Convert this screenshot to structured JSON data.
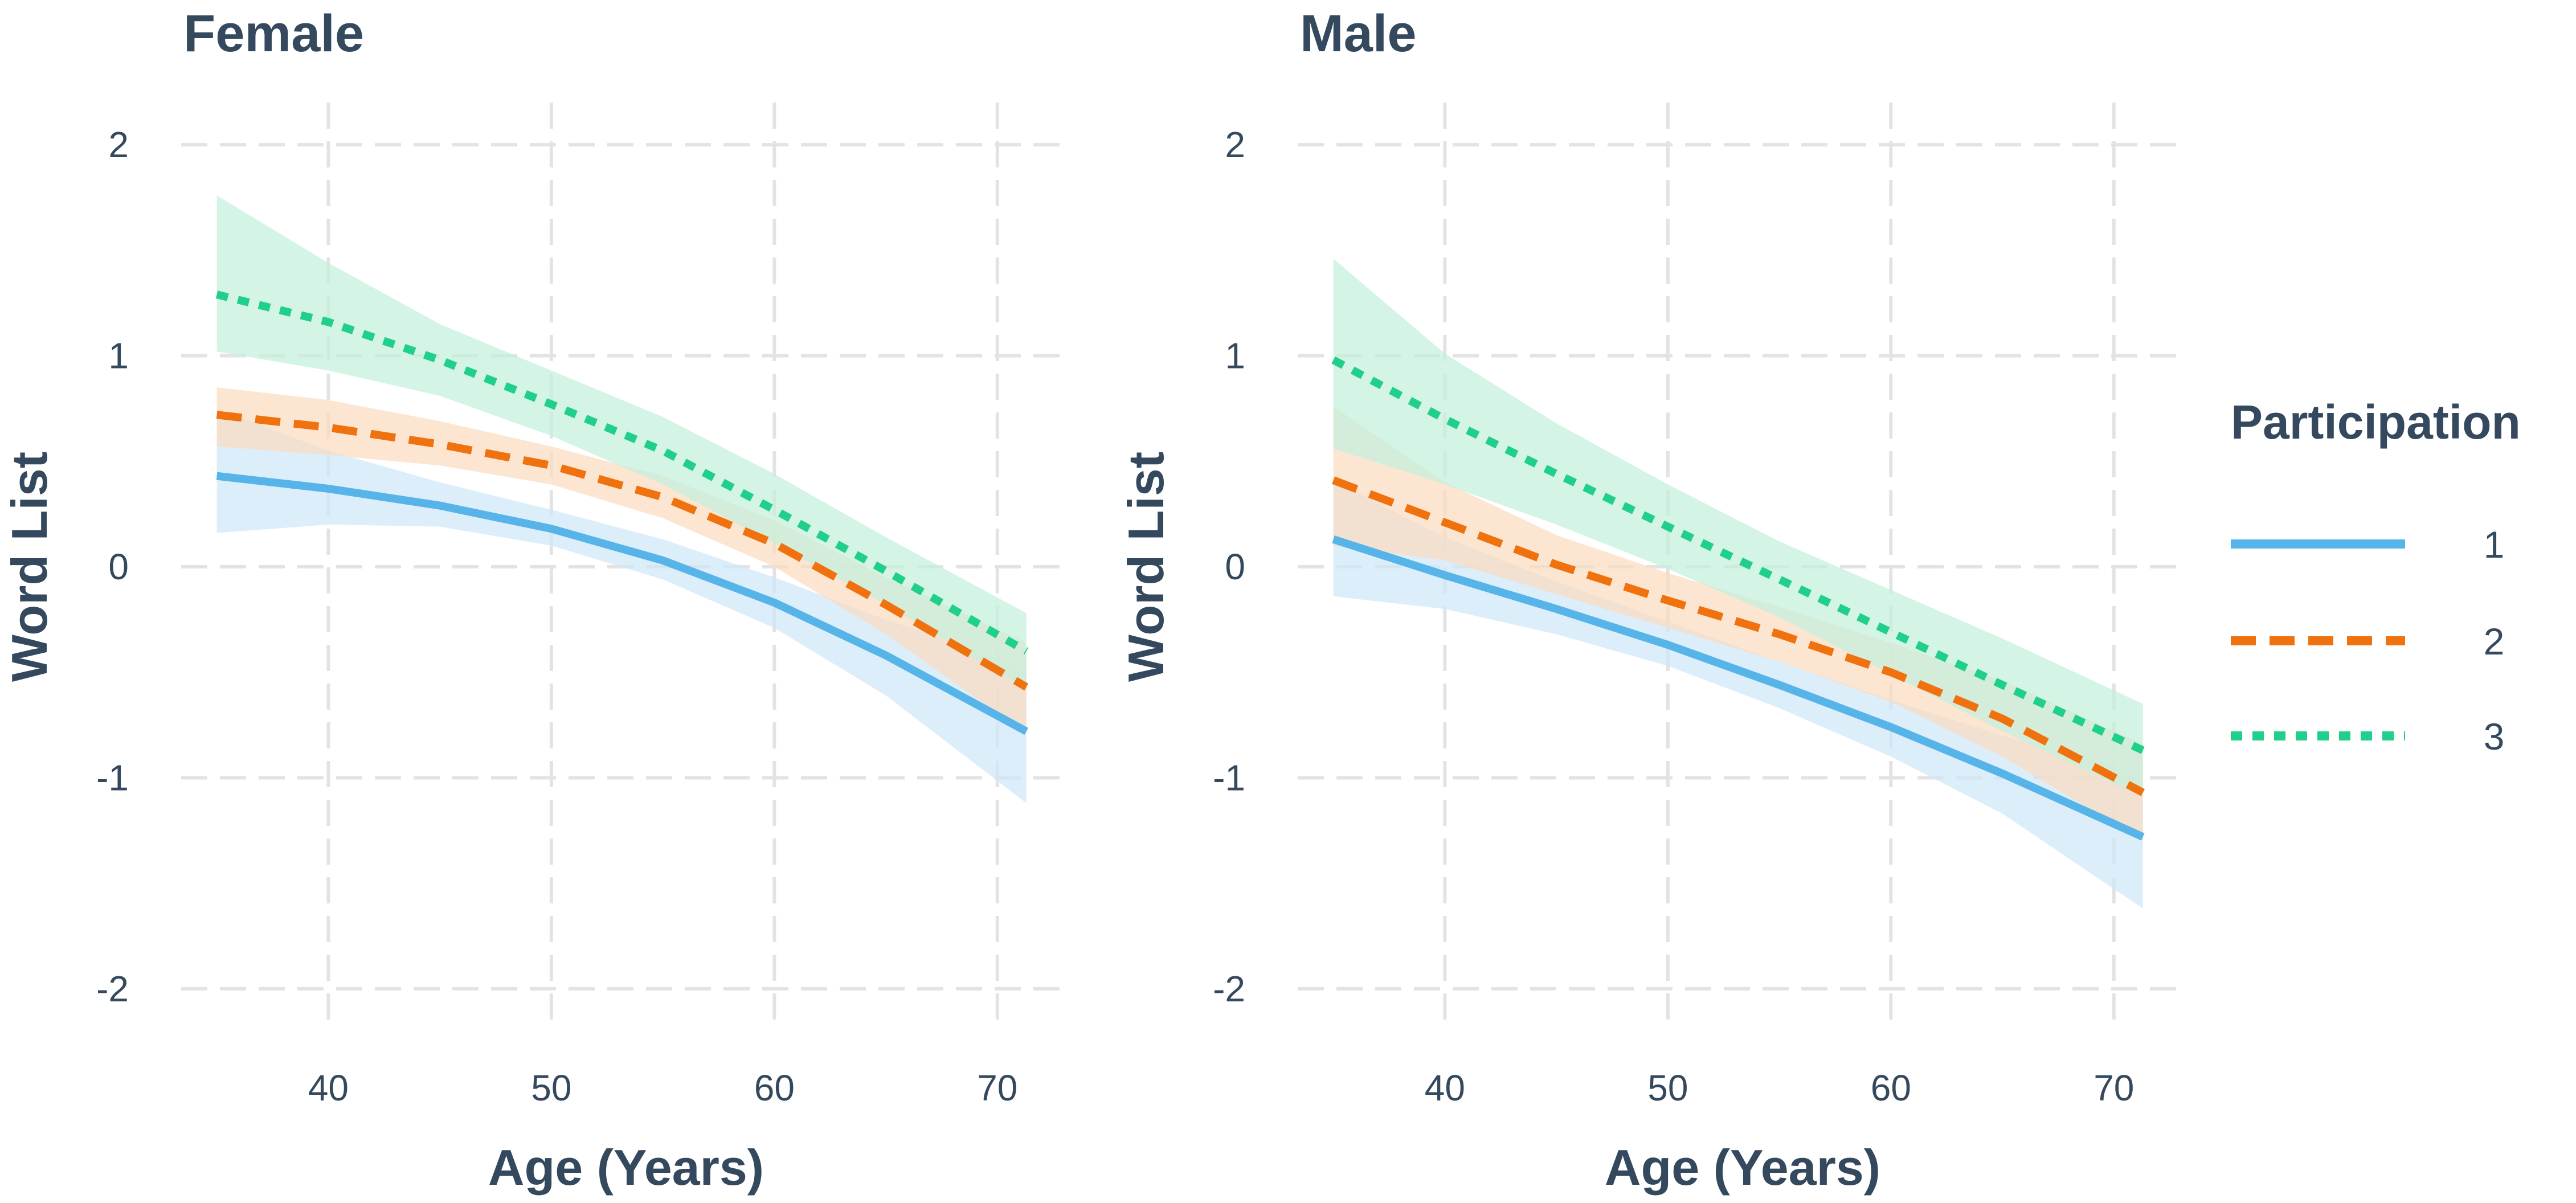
{
  "chart_data": [
    {
      "type": "line",
      "title": "Female",
      "xlabel": "Age (Years)",
      "ylabel": "Word List",
      "xlim": [
        33.4,
        73.3
      ],
      "ylim": [
        -2.2,
        2.2
      ],
      "xticks": [
        40,
        50,
        60,
        70
      ],
      "yticks": [
        -2,
        -1,
        0,
        1,
        2
      ],
      "grid": true,
      "x": [
        35,
        40,
        45,
        50,
        55,
        60,
        65,
        71.3
      ],
      "series": [
        {
          "name": "1",
          "values": [
            0.43,
            0.37,
            0.29,
            0.18,
            0.03,
            -0.17,
            -0.42,
            -0.78
          ],
          "lower": [
            0.16,
            0.2,
            0.19,
            0.1,
            -0.06,
            -0.29,
            -0.61,
            -1.12
          ],
          "upper": [
            0.75,
            0.55,
            0.4,
            0.27,
            0.13,
            -0.05,
            -0.25,
            -0.47
          ]
        },
        {
          "name": "2",
          "values": [
            0.72,
            0.66,
            0.58,
            0.48,
            0.33,
            0.11,
            -0.18,
            -0.57
          ],
          "lower": [
            0.57,
            0.53,
            0.48,
            0.39,
            0.23,
            0.0,
            -0.32,
            -0.79
          ],
          "upper": [
            0.85,
            0.79,
            0.69,
            0.57,
            0.43,
            0.22,
            -0.05,
            -0.36
          ]
        },
        {
          "name": "3",
          "values": [
            1.29,
            1.16,
            0.98,
            0.77,
            0.55,
            0.27,
            -0.02,
            -0.4
          ],
          "lower": [
            1.02,
            0.93,
            0.81,
            0.62,
            0.39,
            0.11,
            -0.18,
            -0.58
          ],
          "upper": [
            1.76,
            1.44,
            1.15,
            0.93,
            0.71,
            0.44,
            0.14,
            -0.22
          ]
        }
      ]
    },
    {
      "type": "line",
      "title": "Male",
      "xlabel": "Age (Years)",
      "ylabel": "Word List",
      "xlim": [
        33.4,
        73.3
      ],
      "ylim": [
        -2.2,
        2.2
      ],
      "xticks": [
        40,
        50,
        60,
        70
      ],
      "yticks": [
        -2,
        -1,
        0,
        1,
        2
      ],
      "grid": true,
      "x": [
        35,
        40,
        45,
        50,
        55,
        60,
        65,
        71.3
      ],
      "series": [
        {
          "name": "1",
          "values": [
            0.13,
            -0.04,
            -0.2,
            -0.37,
            -0.56,
            -0.76,
            -0.98,
            -1.28
          ],
          "lower": [
            -0.14,
            -0.2,
            -0.32,
            -0.47,
            -0.67,
            -0.9,
            -1.17,
            -1.62
          ],
          "upper": [
            0.41,
            0.14,
            -0.07,
            -0.26,
            -0.45,
            -0.63,
            -0.8,
            -0.98
          ]
        },
        {
          "name": "2",
          "values": [
            0.41,
            0.21,
            0.01,
            -0.16,
            -0.32,
            -0.5,
            -0.72,
            -1.07
          ],
          "lower": [
            0.1,
            0.03,
            -0.13,
            -0.29,
            -0.45,
            -0.64,
            -0.9,
            -1.3
          ],
          "upper": [
            0.76,
            0.4,
            0.15,
            -0.03,
            -0.19,
            -0.36,
            -0.54,
            -0.84
          ]
        },
        {
          "name": "3",
          "values": [
            0.98,
            0.7,
            0.44,
            0.19,
            -0.06,
            -0.31,
            -0.56,
            -0.87
          ],
          "lower": [
            0.56,
            0.39,
            0.2,
            -0.01,
            -0.24,
            -0.51,
            -0.78,
            -1.09
          ],
          "upper": [
            1.46,
            1.01,
            0.68,
            0.39,
            0.12,
            -0.11,
            -0.34,
            -0.65
          ]
        }
      ]
    }
  ],
  "legend": {
    "title": "Participation",
    "position": "right",
    "items": [
      {
        "label": "1",
        "color": "#56b4e9",
        "band": "#cfe8f8",
        "dash": "solid"
      },
      {
        "label": "2",
        "color": "#f0720e",
        "band": "#fbdcc0",
        "dash": "dashed"
      },
      {
        "label": "3",
        "color": "#1fcf8a",
        "band": "#c4f0dd",
        "dash": "dotted"
      }
    ]
  }
}
